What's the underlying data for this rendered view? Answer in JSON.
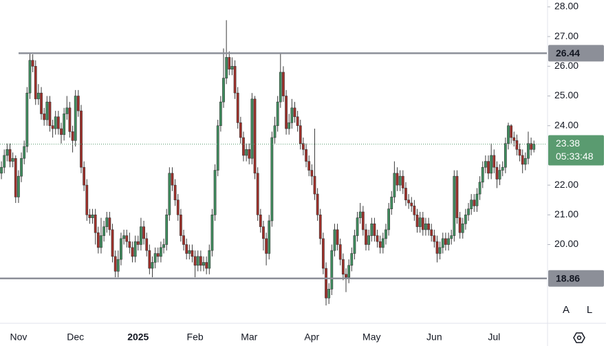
{
  "chart_data": {
    "type": "candlestick",
    "categories": [
      null,
      null,
      null,
      null,
      null,
      null,
      "Nov",
      null,
      null,
      null,
      null,
      null,
      null,
      null,
      null,
      null,
      null,
      null,
      null,
      null,
      null,
      null,
      null,
      null,
      null,
      null,
      "Dec",
      null,
      null,
      null,
      null,
      null,
      null,
      null,
      null,
      null,
      null,
      null,
      null,
      null,
      null,
      null,
      null,
      null,
      null,
      null,
      null,
      null,
      "2025",
      null,
      null,
      null,
      null,
      null,
      null,
      null,
      null,
      null,
      null,
      null,
      null,
      null,
      null,
      null,
      null,
      null,
      null,
      null,
      "Feb",
      null,
      null,
      null,
      null,
      null,
      null,
      null,
      null,
      null,
      null,
      null,
      null,
      null,
      null,
      null,
      null,
      null,
      null,
      "Mar",
      null,
      null,
      null,
      null,
      null,
      null,
      null,
      null,
      null,
      null,
      null,
      null,
      null,
      null,
      null,
      null,
      null,
      null,
      null,
      null,
      null,
      "Apr",
      null,
      null,
      null,
      null,
      null,
      null,
      null,
      null,
      null,
      null,
      null,
      null,
      null,
      null,
      null,
      null,
      null,
      null,
      null,
      null,
      "May",
      null,
      null,
      null,
      null,
      null,
      null,
      null,
      null,
      null,
      null,
      null,
      null,
      null,
      null,
      null,
      null,
      null,
      null,
      null,
      null,
      null,
      "Jun",
      null,
      null,
      null,
      null,
      null,
      null,
      null,
      null,
      null,
      null,
      null,
      null,
      null,
      null,
      null,
      null,
      null,
      null,
      null,
      null,
      "Jul",
      null,
      null,
      null,
      null,
      null,
      null,
      null,
      null,
      null,
      null,
      null,
      null,
      null,
      null
    ],
    "open": [
      22.4,
      22.6,
      23.0,
      23.2,
      22.8,
      22.9,
      21.6,
      22.3,
      22.9,
      23.3,
      25.1,
      26.2,
      26.0,
      24.9,
      25.1,
      24.4,
      24.2,
      24.8,
      24.0,
      23.9,
      24.3,
      23.9,
      23.7,
      24.4,
      24.6,
      23.8,
      23.5,
      25.0,
      24.5,
      22.6,
      22.0,
      21.0,
      20.9,
      21.0,
      20.4,
      19.9,
      20.3,
      20.6,
      20.9,
      20.5,
      19.6,
      19.1,
      19.5,
      20.2,
      20.3,
      20.1,
      19.9,
      19.6,
      20.1,
      20.0,
      20.6,
      20.2,
      19.8,
      19.2,
      19.4,
      19.7,
      19.6,
      19.9,
      20.0,
      21.0,
      22.4,
      22.0,
      21.5,
      21.0,
      20.3,
      20.0,
      19.7,
      19.8,
      19.6,
      19.3,
      19.6,
      19.3,
      19.4,
      19.2,
      19.8,
      21.0,
      22.5,
      24.0,
      24.8,
      25.6,
      26.3,
      25.9,
      26.0,
      25.1,
      24.1,
      23.6,
      23.0,
      23.2,
      22.9,
      24.9,
      22.4,
      21.0,
      20.6,
      20.2,
      19.7,
      20.8,
      23.6,
      24.0,
      24.8,
      25.8,
      25.0,
      23.9,
      24.1,
      24.6,
      24.3,
      24.0,
      23.4,
      23.2,
      22.8,
      22.5,
      22.3,
      21.7,
      21.0,
      20.2,
      19.2,
      18.2,
      18.5,
      19.8,
      20.5,
      20.0,
      19.5,
      19.0,
      18.9,
      19.3,
      19.7,
      20.3,
      20.9,
      21.1,
      20.5,
      20.0,
      20.3,
      20.7,
      20.3,
      20.1,
      19.9,
      20.2,
      20.5,
      21.2,
      21.6,
      22.4,
      22.0,
      22.3,
      21.9,
      21.5,
      21.4,
      21.3,
      21.0,
      20.6,
      20.9,
      20.5,
      20.7,
      20.5,
      20.3,
      20.1,
      19.7,
      19.9,
      20.2,
      20.0,
      20.2,
      20.3,
      22.3,
      20.9,
      20.4,
      20.7,
      21.0,
      21.2,
      21.5,
      21.3,
      21.7,
      22.1,
      22.6,
      22.8,
      22.4,
      23.0,
      22.6,
      22.2,
      22.5,
      22.6,
      23.4,
      24.0,
      23.6,
      23.5,
      23.2,
      23.0,
      22.7,
      22.9,
      23.4,
      23.2
    ],
    "high": [
      22.8,
      23.2,
      23.4,
      23.4,
      23.1,
      23.0,
      22.5,
      23.1,
      23.5,
      25.3,
      26.45,
      26.4,
      26.2,
      25.4,
      25.3,
      24.6,
      25.0,
      25.0,
      24.2,
      24.5,
      24.5,
      24.1,
      24.6,
      25.0,
      24.8,
      24.0,
      25.2,
      25.2,
      24.7,
      22.8,
      22.2,
      21.2,
      21.2,
      21.2,
      20.6,
      20.9,
      20.8,
      21.1,
      21.1,
      20.7,
      19.8,
      19.8,
      20.4,
      20.5,
      20.5,
      20.4,
      20.1,
      20.3,
      20.3,
      20.9,
      20.8,
      20.4,
      20.0,
      19.6,
      19.9,
      19.9,
      20.1,
      20.2,
      21.2,
      22.6,
      22.6,
      22.2,
      21.7,
      21.2,
      20.5,
      20.2,
      20.0,
      20.0,
      19.8,
      19.8,
      19.8,
      19.6,
      19.6,
      20.0,
      21.2,
      22.7,
      24.2,
      25.0,
      26.6,
      27.55,
      26.5,
      26.3,
      26.2,
      25.3,
      24.3,
      23.8,
      23.4,
      23.4,
      25.1,
      25.0,
      22.6,
      21.2,
      20.8,
      20.4,
      21.0,
      23.8,
      24.3,
      25.0,
      26.45,
      26.0,
      25.2,
      24.4,
      24.9,
      24.8,
      24.5,
      24.2,
      23.6,
      23.4,
      23.0,
      22.7,
      23.9,
      21.9,
      21.2,
      20.4,
      19.4,
      18.7,
      20.0,
      20.7,
      20.7,
      20.2,
      19.7,
      19.2,
      19.5,
      19.9,
      20.5,
      21.1,
      21.4,
      21.3,
      20.7,
      20.5,
      20.9,
      20.9,
      20.5,
      20.3,
      20.4,
      20.7,
      21.4,
      21.8,
      22.8,
      22.6,
      22.5,
      22.5,
      22.1,
      21.7,
      21.6,
      21.5,
      21.2,
      21.1,
      21.1,
      20.9,
      20.9,
      20.7,
      20.5,
      20.3,
      20.1,
      20.4,
      20.4,
      20.4,
      20.5,
      22.5,
      22.5,
      21.1,
      20.9,
      21.2,
      21.4,
      21.7,
      21.7,
      21.9,
      22.3,
      22.8,
      23.0,
      23.0,
      23.4,
      23.2,
      22.8,
      22.7,
      22.8,
      23.6,
      24.1,
      24.05,
      23.8,
      23.7,
      23.4,
      23.2,
      23.1,
      23.8,
      23.6,
      23.5
    ],
    "low": [
      22.2,
      22.4,
      22.8,
      22.6,
      22.6,
      21.4,
      21.4,
      22.1,
      22.7,
      23.1,
      24.9,
      25.8,
      24.7,
      24.7,
      24.2,
      24.0,
      24.0,
      23.8,
      23.6,
      23.7,
      23.7,
      23.4,
      23.5,
      24.2,
      23.6,
      23.1,
      23.3,
      24.3,
      22.4,
      21.8,
      20.8,
      20.7,
      20.7,
      20.0,
      19.7,
      19.7,
      20.1,
      20.4,
      20.3,
      19.4,
      18.9,
      18.9,
      19.3,
      20.0,
      19.9,
      19.7,
      19.4,
      19.4,
      19.8,
      19.8,
      20.0,
      19.6,
      19.0,
      18.9,
      19.2,
      19.4,
      19.4,
      19.7,
      19.8,
      20.8,
      21.8,
      21.3,
      20.8,
      20.1,
      19.8,
      19.5,
      19.5,
      19.4,
      18.9,
      19.1,
      19.1,
      19.1,
      19.0,
      19.0,
      19.6,
      20.8,
      22.3,
      23.8,
      24.6,
      25.4,
      25.7,
      25.7,
      24.9,
      23.9,
      23.4,
      22.8,
      22.8,
      22.7,
      22.7,
      22.2,
      20.8,
      20.4,
      19.8,
      19.3,
      19.5,
      20.6,
      23.4,
      23.8,
      24.6,
      24.8,
      23.7,
      23.7,
      23.9,
      24.1,
      23.8,
      23.2,
      23.0,
      22.6,
      22.3,
      22.0,
      21.5,
      20.8,
      20.0,
      19.0,
      17.95,
      18.0,
      18.3,
      19.6,
      19.8,
      19.3,
      18.8,
      18.4,
      18.7,
      19.1,
      19.5,
      20.1,
      20.7,
      20.3,
      19.8,
      19.8,
      20.1,
      20.1,
      19.9,
      19.7,
      19.7,
      20.0,
      20.3,
      21.0,
      21.4,
      21.8,
      21.8,
      21.7,
      21.3,
      21.2,
      21.1,
      20.8,
      20.4,
      20.4,
      20.3,
      20.3,
      20.3,
      20.1,
      19.9,
      19.4,
      19.5,
      19.7,
      19.8,
      19.8,
      20.0,
      20.1,
      20.7,
      20.2,
      20.2,
      20.5,
      20.8,
      21.0,
      21.1,
      21.1,
      21.5,
      21.9,
      22.4,
      22.2,
      22.2,
      22.4,
      21.9,
      22.0,
      22.3,
      22.4,
      23.2,
      23.4,
      23.3,
      23.0,
      22.8,
      22.4,
      22.5,
      22.7,
      23.0,
      23.1
    ],
    "close": [
      22.6,
      23.0,
      23.2,
      22.8,
      22.9,
      21.6,
      22.3,
      22.9,
      23.3,
      25.1,
      26.2,
      26.0,
      24.9,
      25.1,
      24.4,
      24.2,
      24.8,
      24.0,
      23.9,
      24.3,
      23.9,
      23.7,
      24.4,
      24.6,
      23.8,
      23.5,
      25.0,
      24.5,
      22.6,
      22.0,
      21.0,
      20.9,
      21.0,
      20.4,
      19.9,
      20.3,
      20.6,
      20.9,
      20.5,
      19.6,
      19.1,
      19.5,
      20.2,
      20.3,
      20.1,
      19.9,
      19.6,
      20.1,
      20.0,
      20.6,
      20.2,
      19.8,
      19.2,
      19.4,
      19.7,
      19.6,
      19.9,
      20.0,
      21.0,
      22.4,
      22.0,
      21.5,
      21.0,
      20.3,
      20.0,
      19.7,
      19.8,
      19.6,
      19.3,
      19.6,
      19.3,
      19.4,
      19.2,
      19.8,
      21.0,
      22.5,
      24.0,
      24.8,
      25.6,
      26.3,
      25.9,
      26.0,
      25.1,
      24.1,
      23.6,
      23.0,
      23.2,
      22.9,
      24.9,
      22.4,
      21.0,
      20.6,
      20.2,
      19.7,
      20.8,
      23.6,
      24.0,
      24.8,
      25.8,
      25.0,
      23.9,
      24.1,
      24.6,
      24.3,
      24.0,
      23.4,
      23.2,
      22.8,
      22.5,
      22.3,
      21.7,
      21.0,
      20.2,
      19.2,
      18.2,
      18.5,
      19.8,
      20.5,
      20.0,
      19.5,
      19.0,
      18.9,
      19.3,
      19.7,
      20.3,
      20.9,
      21.1,
      20.5,
      20.0,
      20.3,
      20.7,
      20.3,
      20.1,
      19.9,
      20.2,
      20.5,
      21.2,
      21.6,
      22.4,
      22.0,
      22.3,
      21.9,
      21.5,
      21.4,
      21.3,
      21.0,
      20.6,
      20.9,
      20.5,
      20.7,
      20.5,
      20.3,
      20.1,
      19.7,
      19.9,
      20.2,
      20.0,
      20.2,
      20.3,
      22.3,
      20.9,
      20.4,
      20.7,
      21.0,
      21.2,
      21.5,
      21.3,
      21.7,
      22.1,
      22.6,
      22.8,
      22.4,
      23.0,
      22.6,
      22.2,
      22.5,
      22.6,
      23.4,
      24.0,
      23.6,
      23.5,
      23.2,
      23.0,
      22.7,
      22.9,
      23.4,
      23.2,
      23.38
    ],
    "up_color": "#3f8d5e",
    "down_color": "#a0302a",
    "ylim": [
      17.35,
      28.23
    ],
    "yticks": [
      {
        "value": 28,
        "label": "28.00"
      },
      {
        "value": 27,
        "label": "27.00"
      },
      {
        "value": 26,
        "label": "26.00"
      },
      {
        "value": 25,
        "label": "25.00"
      },
      {
        "value": 24,
        "label": "24.00"
      },
      {
        "value": 22,
        "label": "22.00"
      },
      {
        "value": 21,
        "label": "21.00"
      },
      {
        "value": 20,
        "label": "20.00"
      }
    ],
    "levels": [
      26.44,
      18.86
    ],
    "level_color": "#8c8f98",
    "countdown": "05:33:48",
    "last_color": "#5a9b70",
    "buttons": [
      "A",
      "L"
    ]
  }
}
